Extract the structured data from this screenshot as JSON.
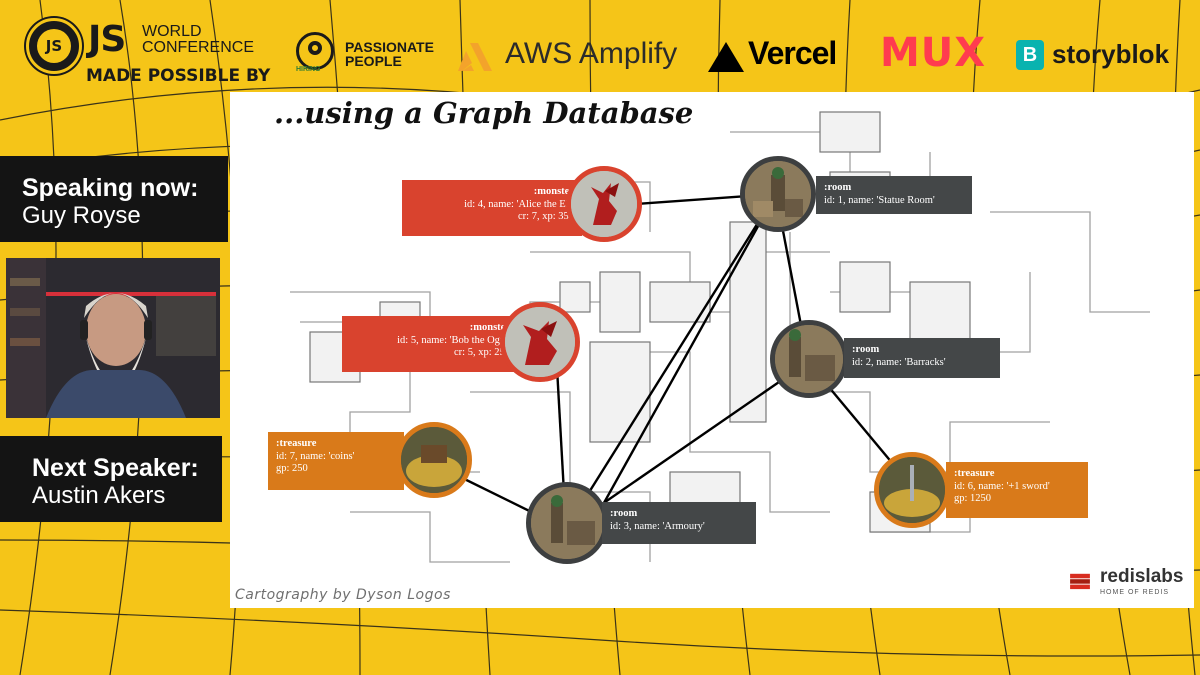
{
  "header": {
    "js_badge": "JS",
    "js_mark": "JS",
    "conf_line1": "WORLD",
    "conf_line2": "CONFERENCE",
    "made_possible": "MADE POSSIBLE BY",
    "passionate_line1": "PASSIONATE",
    "passionate_line2": "PEOPLE",
    "passionate_tag": "HIRING",
    "amplify": "AWS Amplify",
    "vercel": "Vercel",
    "mux": "MUX",
    "storyblok_icon": "B",
    "storyblok": "storyblok"
  },
  "sidebar": {
    "speaking_label": "Speaking now:",
    "speaking_name": "Guy Royse",
    "next_label": "Next Speaker:",
    "next_name": "Austin Akers"
  },
  "slide": {
    "title": "...using a Graph Database",
    "credit": "Cartography by Dyson Logos",
    "redis_name": "redislabs",
    "redis_tagline": "HOME OF REDIS",
    "nodes": {
      "alice": {
        "type": ":monster",
        "line1": "id: 4, name: 'Alice the Elf'",
        "line2": "cr: 7, xp: 350"
      },
      "bob": {
        "type": ":monster",
        "line1": "id: 5, name: 'Bob the Ogre'",
        "line2": "cr: 5, xp: 250"
      },
      "coins": {
        "type": ":treasure",
        "line1": "id: 7, name: 'coins'",
        "line2": "gp: 250"
      },
      "statue": {
        "type": ":room",
        "line1": "id: 1, name: 'Statue Room'"
      },
      "barracks": {
        "type": ":room",
        "line1": "id: 2, name: 'Barracks'"
      },
      "armoury": {
        "type": ":room",
        "line1": "id: 3, name: 'Armoury'"
      },
      "sword": {
        "type": ":treasure",
        "line1": "id: 6, name: '+1 sword'",
        "line2": "gp: 1250"
      }
    }
  },
  "colors": {
    "background": "#f5c518",
    "room": "#444748",
    "monster": "#d9432e",
    "treasure": "#d97a1a"
  }
}
